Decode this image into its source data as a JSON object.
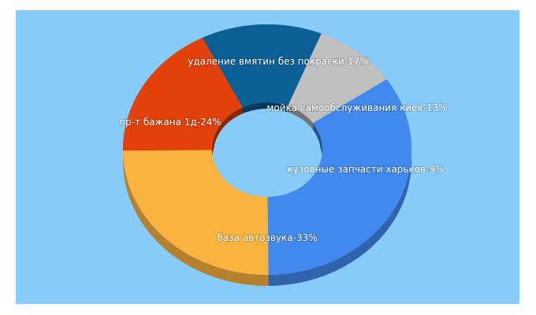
{
  "chart_data": {
    "type": "pie",
    "style": "3d-donut",
    "title": "",
    "legend": "none",
    "slices": [
      {
        "label": "база автозвука-33%",
        "value": 33,
        "color": "#4189ef"
      },
      {
        "label": "пр-т бажана 1д-24%",
        "value": 24,
        "color": "#fbb33f"
      },
      {
        "label": "удаление вмятин без покраски-17%",
        "value": 17,
        "color": "#e2420a"
      },
      {
        "label": "мойка самообслуживания киев-13%",
        "value": 13,
        "color": "#0a5f95"
      },
      {
        "label": "кузовные запчасти харьков-9%",
        "value": 9,
        "color": "#c0c0c0"
      }
    ]
  },
  "background_color": "#87cbf9"
}
